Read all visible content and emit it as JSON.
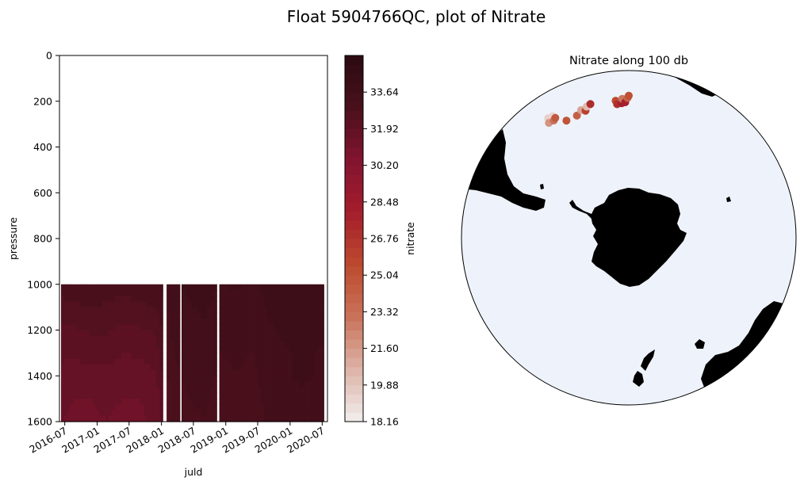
{
  "figure": {
    "suptitle": "Float 5904766QC, plot of Nitrate"
  },
  "colors": {
    "ocean": "#EEF3FB",
    "land": "#000000",
    "background": "#ffffff",
    "colormap_stops": [
      "#F2EEEE",
      "#DDB3A7",
      "#C9735A",
      "#BC4A2E",
      "#A51E2C",
      "#831430",
      "#4A101C",
      "#2B0A12"
    ]
  },
  "chart_data": [
    {
      "type": "heatmap",
      "title": "",
      "xlabel": "juld",
      "ylabel": "pressure",
      "x_ticks": [
        "2016-07",
        "2017-01",
        "2017-07",
        "2018-01",
        "2018-07",
        "2019-01",
        "2019-07",
        "2020-01",
        "2020-07"
      ],
      "y_ticks": [
        0,
        200,
        400,
        600,
        800,
        1000,
        1200,
        1400,
        1600
      ],
      "ylim": [
        1600,
        0
      ],
      "y_inverted": true,
      "data_pressure_range": [
        1000,
        1600
      ],
      "segments": [
        {
          "start": "2016-06-10",
          "end": "2018-01-08"
        },
        {
          "start": "2018-01-30",
          "end": "2018-04-15"
        },
        {
          "start": "2018-04-25",
          "end": "2018-11-10"
        },
        {
          "start": "2018-11-25",
          "end": "2020-07-10"
        }
      ],
      "profiles": [
        {
          "date": "2016-06-10",
          "nitrate_by_depth": [
            33.0,
            32.6,
            32.3,
            32.0,
            31.8,
            31.6,
            31.5
          ]
        },
        {
          "date": "2016-09-01",
          "nitrate_by_depth": [
            33.1,
            32.7,
            32.3,
            32.0,
            31.7,
            31.5,
            31.4
          ]
        },
        {
          "date": "2016-12-01",
          "nitrate_by_depth": [
            33.1,
            32.8,
            32.4,
            32.1,
            31.8,
            31.5,
            31.4
          ]
        },
        {
          "date": "2017-03-01",
          "nitrate_by_depth": [
            33.0,
            32.7,
            32.4,
            32.1,
            31.8,
            31.6,
            31.5
          ]
        },
        {
          "date": "2017-06-01",
          "nitrate_by_depth": [
            33.0,
            32.6,
            32.2,
            31.9,
            31.7,
            31.5,
            31.3
          ]
        },
        {
          "date": "2017-09-01",
          "nitrate_by_depth": [
            33.0,
            32.7,
            32.3,
            32.0,
            31.7,
            31.5,
            31.4
          ]
        },
        {
          "date": "2017-12-01",
          "nitrate_by_depth": [
            33.1,
            32.8,
            32.4,
            32.2,
            31.9,
            31.7,
            31.6
          ]
        },
        {
          "date": "2018-03-01",
          "nitrate_by_depth": [
            33.6,
            33.4,
            33.3,
            33.2,
            33.1,
            33.0,
            32.9
          ]
        },
        {
          "date": "2018-06-01",
          "nitrate_by_depth": [
            33.7,
            33.6,
            33.5,
            33.4,
            33.3,
            33.2,
            33.1
          ]
        },
        {
          "date": "2018-09-01",
          "nitrate_by_depth": [
            33.8,
            33.7,
            33.6,
            33.5,
            33.4,
            33.3,
            33.2
          ]
        },
        {
          "date": "2018-12-01",
          "nitrate_by_depth": [
            33.6,
            33.5,
            33.3,
            33.2,
            33.1,
            33.0,
            33.0
          ]
        },
        {
          "date": "2019-03-01",
          "nitrate_by_depth": [
            33.7,
            33.5,
            33.4,
            33.3,
            33.2,
            33.1,
            33.0
          ]
        },
        {
          "date": "2019-06-01",
          "nitrate_by_depth": [
            33.6,
            33.4,
            33.3,
            33.2,
            33.1,
            33.0,
            32.9
          ]
        },
        {
          "date": "2019-09-01",
          "nitrate_by_depth": [
            33.8,
            33.7,
            33.6,
            33.6,
            33.5,
            33.4,
            33.3
          ]
        },
        {
          "date": "2019-12-01",
          "nitrate_by_depth": [
            33.9,
            33.8,
            33.7,
            33.6,
            33.6,
            33.5,
            33.4
          ]
        },
        {
          "date": "2020-03-01",
          "nitrate_by_depth": [
            34.0,
            33.9,
            33.8,
            33.7,
            33.7,
            33.6,
            33.5
          ]
        },
        {
          "date": "2020-07-10",
          "nitrate_by_depth": [
            33.9,
            33.8,
            33.7,
            33.6,
            33.6,
            33.5,
            33.4
          ]
        }
      ],
      "depth_levels": [
        1000,
        1100,
        1200,
        1300,
        1400,
        1500,
        1600
      ],
      "colorbar": {
        "label": "nitrate",
        "range": [
          18.16,
          35.36
        ],
        "ticks": [
          "33.64",
          "31.92",
          "30.20",
          "28.48",
          "26.76",
          "25.04",
          "23.32",
          "21.60",
          "19.88",
          "18.16"
        ],
        "levels": 40
      }
    },
    {
      "type": "scatter",
      "title": "Nitrate along 100 db",
      "projection": "south-polar-stereographic",
      "xlabel": "",
      "ylabel": "",
      "points": [
        {
          "lon": -12.0,
          "lat": -46.2,
          "nitrate": 19.5
        },
        {
          "lon": -10.0,
          "lat": -46.4,
          "nitrate": 19.2
        },
        {
          "lon": -12.8,
          "lat": -47.4,
          "nitrate": 21.8
        },
        {
          "lon": -10.6,
          "lat": -47.6,
          "nitrate": 23.2
        },
        {
          "lon": -9.5,
          "lat": -47.2,
          "nitrate": 24.6
        },
        {
          "lon": -6.0,
          "lat": -49.4,
          "nitrate": 24.9
        },
        {
          "lon": -1.0,
          "lat": -49.4,
          "nitrate": 24.2
        },
        {
          "lon": 1.5,
          "lat": -48.4,
          "nitrate": 21.2
        },
        {
          "lon": 3.2,
          "lat": -49.0,
          "nitrate": 26.0
        },
        {
          "lon": 4.2,
          "lat": -48.0,
          "nitrate": 20.4
        },
        {
          "lon": 5.3,
          "lat": -47.8,
          "nitrate": 20.2
        },
        {
          "lon": 6.0,
          "lat": -47.6,
          "nitrate": 27.2
        },
        {
          "lon": 16.5,
          "lat": -48.0,
          "nitrate": 25.5
        },
        {
          "lon": 17.0,
          "lat": -49.0,
          "nitrate": 27.0
        },
        {
          "lon": 19.0,
          "lat": -48.8,
          "nitrate": 28.0
        },
        {
          "lon": 19.3,
          "lat": -47.6,
          "nitrate": 23.0
        },
        {
          "lon": 20.5,
          "lat": -48.6,
          "nitrate": 27.8
        },
        {
          "lon": 21.5,
          "lat": -47.4,
          "nitrate": 24.0
        },
        {
          "lon": 22.0,
          "lat": -46.8,
          "nitrate": 25.2
        }
      ]
    }
  ]
}
